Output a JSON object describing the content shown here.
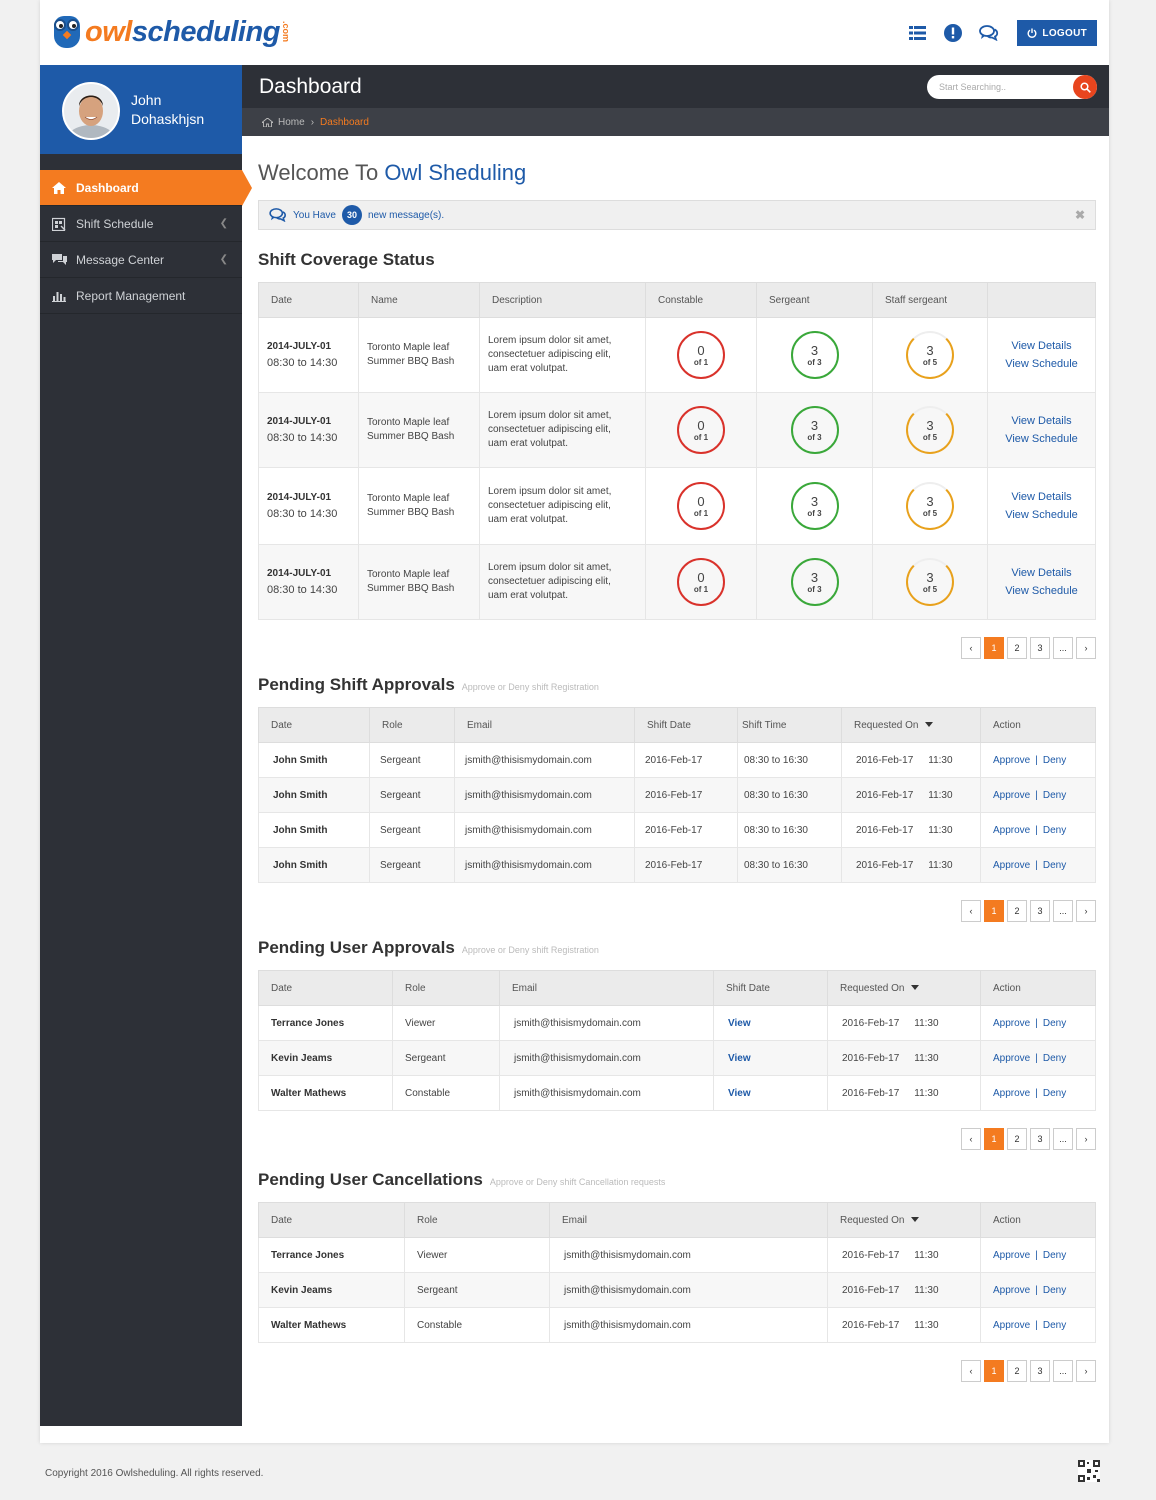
{
  "brand": {
    "logo_a": "owl",
    "logo_b": "scheduling",
    "logo_c": ".com"
  },
  "topbar": {
    "logout": "LOGOUT",
    "icons": [
      "list-icon",
      "alert-icon",
      "chat-icon"
    ]
  },
  "profile": {
    "first": "John",
    "last": "Dohaskhjsn"
  },
  "nav": [
    {
      "label": "Dashboard",
      "active": true
    },
    {
      "label": "Shift Schedule"
    },
    {
      "label": "Message Center"
    },
    {
      "label": "Report Management"
    }
  ],
  "header": {
    "title": "Dashboard",
    "search_placeholder": "Start Searching.."
  },
  "breadcrumb": {
    "home": "Home",
    "current": "Dashboard"
  },
  "welcome": {
    "prefix": "Welcome To",
    "name": "Owl Sheduling"
  },
  "messages": {
    "prefix": "You Have",
    "count": "30",
    "suffix": "new message(s)."
  },
  "coverage": {
    "title": "Shift Coverage Status",
    "headers": [
      "Date",
      "Name",
      "Description",
      "Constable",
      "Sergeant",
      "Staff sergeant",
      ""
    ],
    "rows": [
      {
        "date": "2014-JULY-01",
        "time": "08:30 to 14:30",
        "name1": "Toronto Maple leaf",
        "name2": "Summer BBQ Bash",
        "d1": "Lorem ipsum dolor sit amet,",
        "d2": "consectetuer adipiscing elit,",
        "d3": "uam erat volutpat.",
        "c": {
          "n": "0",
          "o": "of 1"
        },
        "s": {
          "n": "3",
          "o": "of 3"
        },
        "ss": {
          "n": "3",
          "o": "of 5"
        },
        "details": "View Details",
        "schedule": "View Schedule"
      },
      {
        "date": "2014-JULY-01",
        "time": "08:30 to 14:30",
        "name1": "Toronto Maple leaf",
        "name2": "Summer BBQ Bash",
        "d1": "Lorem ipsum dolor sit amet,",
        "d2": "consectetuer adipiscing elit,",
        "d3": "uam erat volutpat.",
        "c": {
          "n": "0",
          "o": "of 1"
        },
        "s": {
          "n": "3",
          "o": "of 3"
        },
        "ss": {
          "n": "3",
          "o": "of 5"
        },
        "details": "View Details",
        "schedule": "View Schedule"
      },
      {
        "date": "2014-JULY-01",
        "time": "08:30 to 14:30",
        "name1": "Toronto Maple leaf",
        "name2": "Summer BBQ Bash",
        "d1": "Lorem ipsum dolor sit amet,",
        "d2": "consectetuer adipiscing elit,",
        "d3": "uam erat volutpat.",
        "c": {
          "n": "0",
          "o": "of 1"
        },
        "s": {
          "n": "3",
          "o": "of 3"
        },
        "ss": {
          "n": "3",
          "o": "of 5"
        },
        "details": "View Details",
        "schedule": "View Schedule"
      },
      {
        "date": "2014-JULY-01",
        "time": "08:30 to 14:30",
        "name1": "Toronto Maple leaf",
        "name2": "Summer BBQ Bash",
        "d1": "Lorem ipsum dolor sit amet,",
        "d2": "consectetuer adipiscing elit,",
        "d3": "uam erat volutpat.",
        "c": {
          "n": "0",
          "o": "of 1"
        },
        "s": {
          "n": "3",
          "o": "of 3"
        },
        "ss": {
          "n": "3",
          "o": "of 5"
        },
        "details": "View Details",
        "schedule": "View Schedule"
      }
    ]
  },
  "shift_approvals": {
    "title": "Pending Shift Approvals",
    "subtitle": "Approve or Deny shift Registration",
    "headers": [
      "Date",
      "Role",
      "Email",
      "Shift Date",
      "Shift Time",
      "Requested On",
      "Action"
    ],
    "rows": [
      {
        "name": "John Smith",
        "role": "Sergeant",
        "email": "jsmith@thisismydomain.com",
        "sdate": "2016-Feb-17",
        "stime": "08:30 to 16:30",
        "req": "2016-Feb-17",
        "reqt": "11:30"
      },
      {
        "name": "John Smith",
        "role": "Sergeant",
        "email": "jsmith@thisismydomain.com",
        "sdate": "2016-Feb-17",
        "stime": "08:30 to 16:30",
        "req": "2016-Feb-17",
        "reqt": "11:30"
      },
      {
        "name": "John Smith",
        "role": "Sergeant",
        "email": "jsmith@thisismydomain.com",
        "sdate": "2016-Feb-17",
        "stime": "08:30 to 16:30",
        "req": "2016-Feb-17",
        "reqt": "11:30"
      },
      {
        "name": "John Smith",
        "role": "Sergeant",
        "email": "jsmith@thisismydomain.com",
        "sdate": "2016-Feb-17",
        "stime": "08:30 to 16:30",
        "req": "2016-Feb-17",
        "reqt": "11:30"
      }
    ]
  },
  "user_approvals": {
    "title": "Pending User Approvals",
    "subtitle": "Approve or Deny shift Registration",
    "headers": [
      "Date",
      "Role",
      "Email",
      "Shift Date",
      "Requested On",
      "Action"
    ],
    "view": "View",
    "rows": [
      {
        "name": "Terrance Jones",
        "role": "Viewer",
        "email": "jsmith@thisismydomain.com",
        "req": "2016-Feb-17",
        "reqt": "11:30"
      },
      {
        "name": "Kevin Jeams",
        "role": "Sergeant",
        "email": "jsmith@thisismydomain.com",
        "req": "2016-Feb-17",
        "reqt": "11:30"
      },
      {
        "name": "Walter Mathews",
        "role": "Constable",
        "email": "jsmith@thisismydomain.com",
        "req": "2016-Feb-17",
        "reqt": "11:30"
      }
    ]
  },
  "cancellations": {
    "title": "Pending User Cancellations",
    "subtitle": "Approve or Deny shift Cancellation requests",
    "headers": [
      "Date",
      "Role",
      "Email",
      "Requested On",
      "Action"
    ],
    "rows": [
      {
        "name": "Terrance Jones",
        "role": "Viewer",
        "email": "jsmith@thisismydomain.com",
        "req": "2016-Feb-17",
        "reqt": "11:30"
      },
      {
        "name": "Kevin Jeams",
        "role": "Sergeant",
        "email": "jsmith@thisismydomain.com",
        "req": "2016-Feb-17",
        "reqt": "11:30"
      },
      {
        "name": "Walter Mathews",
        "role": "Constable",
        "email": "jsmith@thisismydomain.com",
        "req": "2016-Feb-17",
        "reqt": "11:30"
      }
    ]
  },
  "actions": {
    "approve": "Approve",
    "deny": "Deny",
    "sep": "|"
  },
  "pager": {
    "prev": "‹",
    "pages": [
      "1",
      "2",
      "3",
      "..."
    ],
    "next": "›"
  },
  "footer": {
    "copyright": "Copyright 2016  Owlsheduling. All rights reserved."
  }
}
